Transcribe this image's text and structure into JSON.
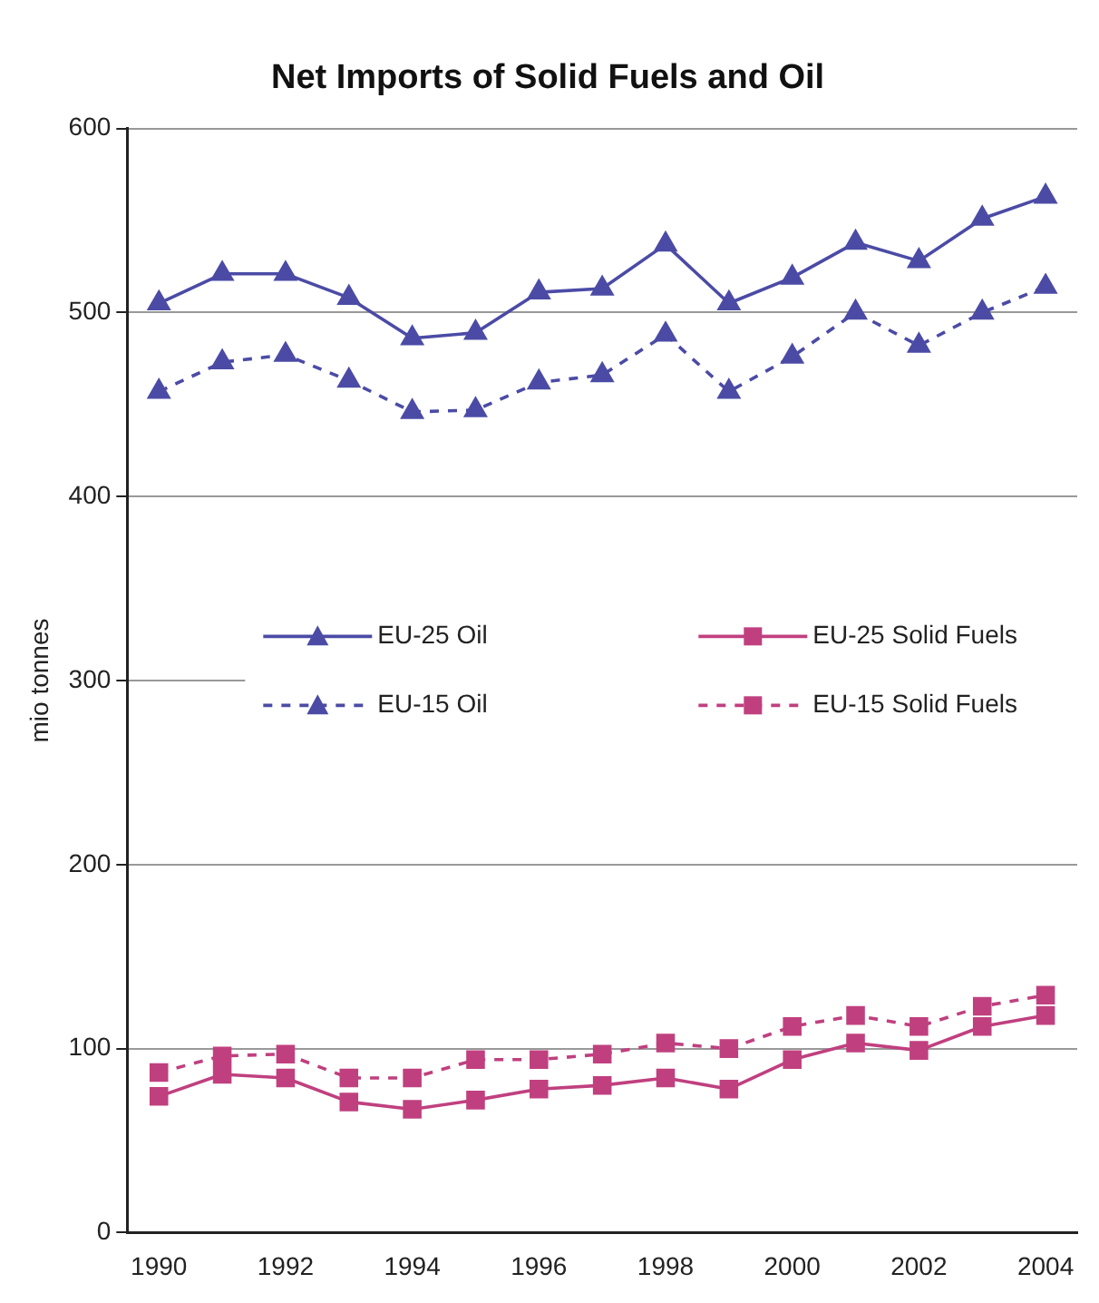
{
  "chart_data": {
    "type": "line",
    "title": "Net Imports of Solid Fuels and Oil",
    "ylabel": "mio tonnes",
    "categories": [
      "1990",
      null,
      "1992",
      null,
      "1994",
      null,
      "1996",
      null,
      "1998",
      null,
      "2000",
      null,
      "2002",
      null,
      "2004"
    ],
    "series": [
      {
        "name": "EU-25 Oil",
        "color": "#4b4ba6",
        "marker": "triangle",
        "line_style": "solid",
        "values": [
          505,
          521,
          521,
          508,
          486,
          489,
          511,
          513,
          537,
          505,
          519,
          538,
          528,
          551,
          563
        ]
      },
      {
        "name": "EU-25 Solid Fuels",
        "color": "#c0407f",
        "marker": "square",
        "line_style": "solid",
        "values": [
          74,
          86,
          84,
          71,
          67,
          72,
          78,
          80,
          84,
          78,
          94,
          103,
          99,
          112,
          118
        ]
      },
      {
        "name": "EU-15 Oil",
        "color": "#4b4ba6",
        "marker": "triangle",
        "line_style": "dashed",
        "values": [
          457,
          473,
          477,
          463,
          446,
          447,
          462,
          466,
          488,
          457,
          476,
          500,
          482,
          500,
          514
        ]
      },
      {
        "name": "EU-15 Solid Fuels",
        "color": "#c0407f",
        "marker": "square",
        "line_style": "dashed",
        "values": [
          87,
          96,
          97,
          84,
          84,
          94,
          94,
          97,
          103,
          100,
          112,
          118,
          112,
          123,
          129
        ]
      }
    ],
    "ylim": [
      0,
      600
    ],
    "yticks": [
      0,
      100,
      200,
      300,
      400,
      500,
      600
    ],
    "grid": "y",
    "legend": "left"
  }
}
